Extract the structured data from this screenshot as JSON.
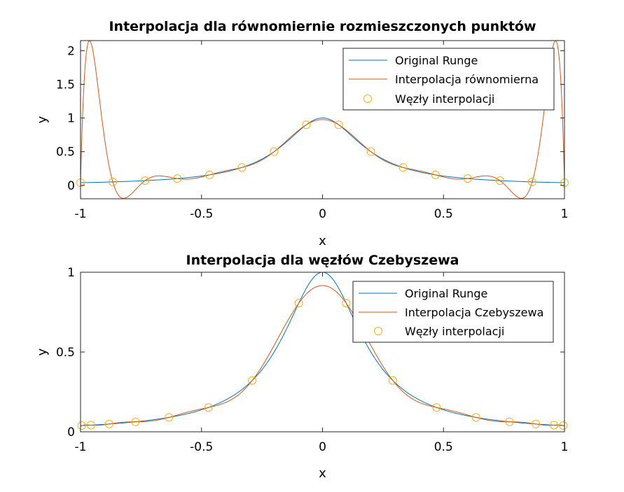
{
  "colors": {
    "runge": "#0072BD",
    "interp": "#D95319",
    "nodes": "#EDB120"
  },
  "chart_data": [
    {
      "type": "line",
      "title": "Interpolacja dla równomiernie rozmieszczonych punktów",
      "xlabel": "x",
      "ylabel": "y",
      "xlim": [
        -1,
        1
      ],
      "ylim": [
        -0.2,
        2.15
      ],
      "xticks": [
        -1,
        -0.5,
        0,
        0.5,
        1
      ],
      "xtick_labels": [
        "-1",
        "-0.5",
        "0",
        "0.5",
        "1"
      ],
      "yticks": [
        0,
        0.5,
        1,
        1.5,
        2
      ],
      "ytick_labels": [
        "0",
        "0.5",
        "1",
        "1.5",
        "2"
      ],
      "legend_position": "top-right",
      "series": [
        {
          "name": "Original Runge",
          "kind": "line",
          "color": "#0072BD",
          "function": "1/(1+25x^2)"
        },
        {
          "name": "Interpolacja równomierna",
          "kind": "line",
          "color": "#D95319",
          "nodes": "equispaced",
          "n_nodes": 16
        },
        {
          "name": "Węzły interpolacji",
          "kind": "markers",
          "color": "#EDB120",
          "marker": "o",
          "x": [
            -1,
            -0.8667,
            -0.7333,
            -0.6,
            -0.4667,
            -0.3333,
            -0.2,
            -0.0667,
            0.0667,
            0.2,
            0.3333,
            0.4667,
            0.6,
            0.7333,
            0.8667,
            1
          ],
          "y": [
            0.0385,
            0.0506,
            0.0692,
            0.1,
            0.1552,
            0.2647,
            0.5,
            0.9,
            0.9,
            0.5,
            0.2647,
            0.1552,
            0.1,
            0.0692,
            0.0506,
            0.0385
          ]
        }
      ]
    },
    {
      "type": "line",
      "title": "Interpolacja dla węzłów Czebyszewa",
      "xlabel": "x",
      "ylabel": "y",
      "xlim": [
        -1,
        1
      ],
      "ylim": [
        0,
        1
      ],
      "xticks": [
        -1,
        -0.5,
        0,
        0.5,
        1
      ],
      "xtick_labels": [
        "-1",
        "-0.5",
        "0",
        "0.5",
        "1"
      ],
      "yticks": [
        0,
        0.5,
        1
      ],
      "ytick_labels": [
        "0",
        "0.5",
        "1"
      ],
      "legend_position": "top-right",
      "series": [
        {
          "name": "Original Runge",
          "kind": "line",
          "color": "#0072BD",
          "function": "1/(1+25x^2)"
        },
        {
          "name": "Interpolacja Czebyszewa",
          "kind": "line",
          "color": "#D95319",
          "nodes": "chebyshev",
          "n_nodes": 16
        },
        {
          "name": "Węzły interpolacji",
          "kind": "markers",
          "color": "#EDB120",
          "marker": "o",
          "x": [
            -0.9952,
            -0.9569,
            -0.8819,
            -0.773,
            -0.6344,
            -0.4714,
            -0.2903,
            -0.098,
            0.098,
            0.2903,
            0.4714,
            0.6344,
            0.773,
            0.8819,
            0.9569,
            0.9952
          ],
          "y": [
            0.0388,
            0.0419,
            0.0489,
            0.0627,
            0.0904,
            0.1525,
            0.3219,
            0.8064,
            0.8064,
            0.3219,
            0.1525,
            0.0904,
            0.0627,
            0.0489,
            0.0419,
            0.0388
          ]
        }
      ]
    }
  ]
}
